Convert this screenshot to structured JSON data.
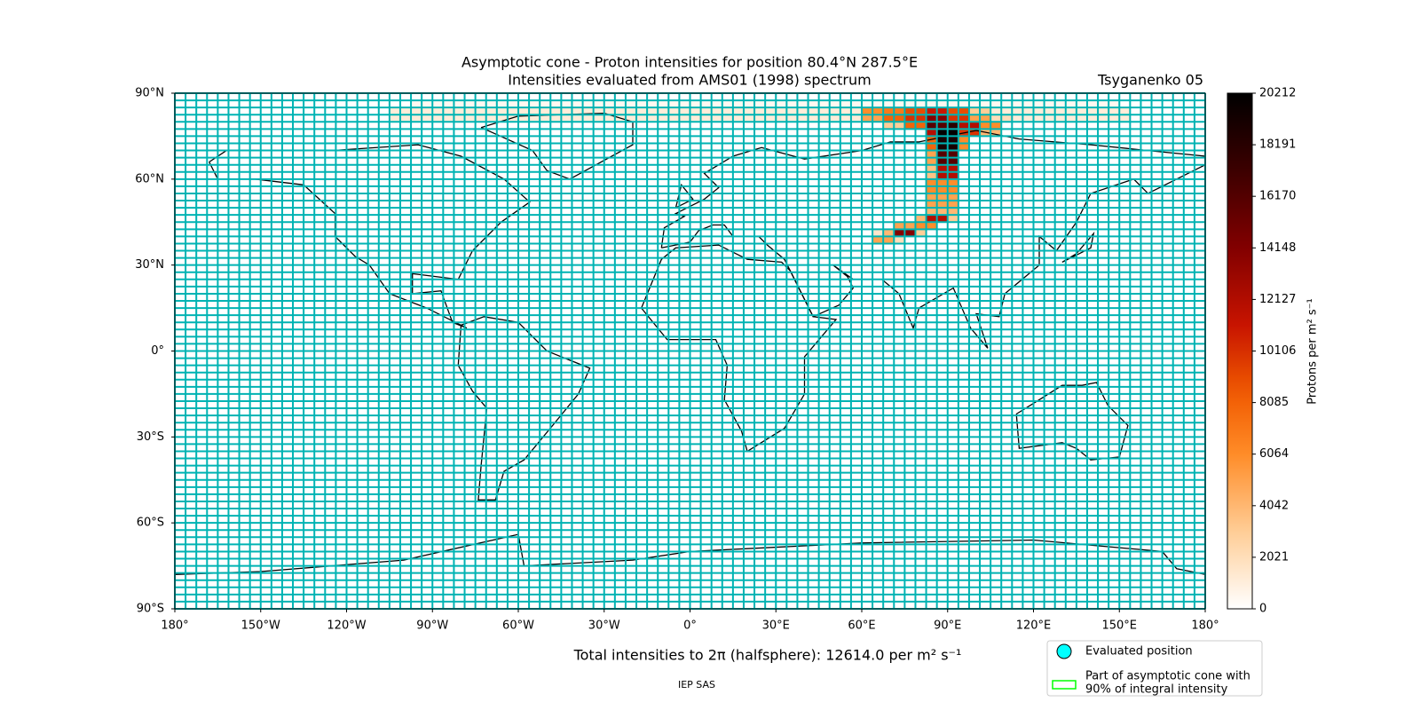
{
  "chart_data": {
    "type": "map",
    "title": "Asymptotic cone - Proton intensities for position 80.4°N 287.5°E",
    "subtitle": "Intensities evaluated from AMS01 (1998) spectrum",
    "model": "Tsyganenko 05",
    "xlim": [
      -180,
      180
    ],
    "ylim": [
      -90,
      90
    ],
    "xticks": [
      {
        "value": -180,
        "label": "180°"
      },
      {
        "value": -150,
        "label": "150°W"
      },
      {
        "value": -120,
        "label": "120°W"
      },
      {
        "value": -90,
        "label": "90°W"
      },
      {
        "value": -60,
        "label": "60°W"
      },
      {
        "value": -30,
        "label": "30°W"
      },
      {
        "value": 0,
        "label": "0°"
      },
      {
        "value": 30,
        "label": "30°E"
      },
      {
        "value": 60,
        "label": "60°E"
      },
      {
        "value": 90,
        "label": "90°E"
      },
      {
        "value": 120,
        "label": "120°E"
      },
      {
        "value": 150,
        "label": "150°E"
      },
      {
        "value": 180,
        "label": "180°"
      }
    ],
    "yticks": [
      {
        "value": 90,
        "label": "90°N"
      },
      {
        "value": 60,
        "label": "60°N"
      },
      {
        "value": 30,
        "label": "30°N"
      },
      {
        "value": 0,
        "label": "0°"
      },
      {
        "value": -30,
        "label": "30°S"
      },
      {
        "value": -60,
        "label": "60°S"
      },
      {
        "value": -90,
        "label": "90°S"
      }
    ],
    "colorbar_label": "Protons per m² s⁻¹",
    "clim": [
      0,
      20212
    ],
    "cticks": [
      0,
      2021,
      4042,
      6064,
      8085,
      10106,
      12127,
      14148,
      16170,
      18191,
      20212
    ],
    "cells": [
      {
        "lon": [
          -97.5,
          150
        ],
        "lat": [
          85,
          87.5
        ],
        "value": 400
      },
      {
        "lon": [
          -105,
          153.75
        ],
        "lat": [
          80,
          85
        ],
        "value": 1100
      },
      {
        "lon": [
          60,
          67.5
        ],
        "lat": [
          82.5,
          85
        ],
        "value": 6000
      },
      {
        "lon": [
          67.5,
          75
        ],
        "lat": [
          82.5,
          85
        ],
        "value": 7000
      },
      {
        "lon": [
          75,
          82.5
        ],
        "lat": [
          82.5,
          85
        ],
        "value": 9000
      },
      {
        "lon": [
          82.5,
          90
        ],
        "lat": [
          82.5,
          85
        ],
        "value": 11000
      },
      {
        "lon": [
          90,
          97.5
        ],
        "lat": [
          82.5,
          85
        ],
        "value": 9000
      },
      {
        "lon": [
          97.5,
          105
        ],
        "lat": [
          82.5,
          85
        ],
        "value": 3000
      },
      {
        "lon": [
          60,
          67.5
        ],
        "lat": [
          80,
          82.5
        ],
        "value": 5000
      },
      {
        "lon": [
          67.5,
          75
        ],
        "lat": [
          80,
          82.5
        ],
        "value": 8000
      },
      {
        "lon": [
          75,
          82.5
        ],
        "lat": [
          80,
          82.5
        ],
        "value": 10000
      },
      {
        "lon": [
          82.5,
          90
        ],
        "lat": [
          80,
          82.5
        ],
        "value": 14000
      },
      {
        "lon": [
          90,
          97.5
        ],
        "lat": [
          80,
          82.5
        ],
        "value": 10000
      },
      {
        "lon": [
          97.5,
          105
        ],
        "lat": [
          80,
          82.5
        ],
        "value": 5000
      },
      {
        "lon": [
          105,
          112.5
        ],
        "lat": [
          80,
          82.5
        ],
        "value": 2000
      },
      {
        "lon": [
          67.5,
          75
        ],
        "lat": [
          77.5,
          80
        ],
        "value": 3000
      },
      {
        "lon": [
          75,
          82.5
        ],
        "lat": [
          77.5,
          80
        ],
        "value": 8000
      },
      {
        "lon": [
          82.5,
          90
        ],
        "lat": [
          77.5,
          80
        ],
        "value": 16000
      },
      {
        "lon": [
          90,
          93.75
        ],
        "lat": [
          77.5,
          80
        ],
        "value": 18000
      },
      {
        "lon": [
          93.75,
          101.25
        ],
        "lat": [
          77.5,
          80
        ],
        "value": 12000
      },
      {
        "lon": [
          101.25,
          108.75
        ],
        "lat": [
          77.5,
          80
        ],
        "value": 6000
      },
      {
        "lon": [
          82.5,
          86.25
        ],
        "lat": [
          75,
          77.5
        ],
        "value": 12000
      },
      {
        "lon": [
          86.25,
          93.75
        ],
        "lat": [
          75,
          77.5
        ],
        "value": 20000
      },
      {
        "lon": [
          93.75,
          101.25
        ],
        "lat": [
          75,
          77.5
        ],
        "value": 10000
      },
      {
        "lon": [
          101.25,
          108.75
        ],
        "lat": [
          75,
          77.5
        ],
        "value": 4000
      },
      {
        "lon": [
          82.5,
          86.25
        ],
        "lat": [
          70,
          75
        ],
        "value": 8000
      },
      {
        "lon": [
          86.25,
          93.75
        ],
        "lat": [
          70,
          75
        ],
        "value": 19000
      },
      {
        "lon": [
          93.75,
          97.5
        ],
        "lat": [
          70,
          75
        ],
        "value": 6000
      },
      {
        "lon": [
          82.5,
          86.25
        ],
        "lat": [
          65,
          70
        ],
        "value": 5000
      },
      {
        "lon": [
          86.25,
          93.75
        ],
        "lat": [
          65,
          70
        ],
        "value": 16000
      },
      {
        "lon": [
          82.5,
          86.25
        ],
        "lat": [
          60,
          65
        ],
        "value": 3500
      },
      {
        "lon": [
          86.25,
          93.75
        ],
        "lat": [
          60,
          65
        ],
        "value": 12000
      },
      {
        "lon": [
          82.5,
          93.75
        ],
        "lat": [
          55,
          60
        ],
        "value": 6000
      },
      {
        "lon": [
          82.5,
          93.75
        ],
        "lat": [
          50,
          55
        ],
        "value": 5000
      },
      {
        "lon": [
          82.5,
          93.75
        ],
        "lat": [
          47.5,
          50
        ],
        "value": 4000
      },
      {
        "lon": [
          78.75,
          82.5
        ],
        "lat": [
          45,
          47.5
        ],
        "value": 4000
      },
      {
        "lon": [
          82.5,
          90
        ],
        "lat": [
          45,
          47.5
        ],
        "value": 12000
      },
      {
        "lon": [
          90,
          93.75
        ],
        "lat": [
          45,
          47.5
        ],
        "value": 3000
      },
      {
        "lon": [
          71.25,
          78.75
        ],
        "lat": [
          42.5,
          45
        ],
        "value": 5000
      },
      {
        "lon": [
          78.75,
          86.25
        ],
        "lat": [
          42.5,
          45
        ],
        "value": 6000
      },
      {
        "lon": [
          63.75,
          67.5
        ],
        "lat": [
          40,
          42.5
        ],
        "value": 1500
      },
      {
        "lon": [
          67.5,
          71.25
        ],
        "lat": [
          40,
          42.5
        ],
        "value": 4000
      },
      {
        "lon": [
          71.25,
          78.75
        ],
        "lat": [
          40,
          42.5
        ],
        "value": 14000
      },
      {
        "lon": [
          78.75,
          82.5
        ],
        "lat": [
          40,
          42.5
        ],
        "value": 3000
      },
      {
        "lon": [
          63.75,
          71.25
        ],
        "lat": [
          37.5,
          40
        ],
        "value": 5000
      },
      {
        "lon": [
          71.25,
          75
        ],
        "lat": [
          37.5,
          40
        ],
        "value": 2000
      }
    ],
    "total_text": "Total intensities to 2π (halfsphere): 12614.0 per m² s⁻¹",
    "legend": [
      {
        "label": [
          "Evaluated position"
        ],
        "color": "#00ffff"
      },
      {
        "label": [
          "Part of asymptotic cone with",
          "90% of integral intensity"
        ],
        "color": "#00ff00"
      }
    ],
    "footer": "IEP SAS"
  }
}
